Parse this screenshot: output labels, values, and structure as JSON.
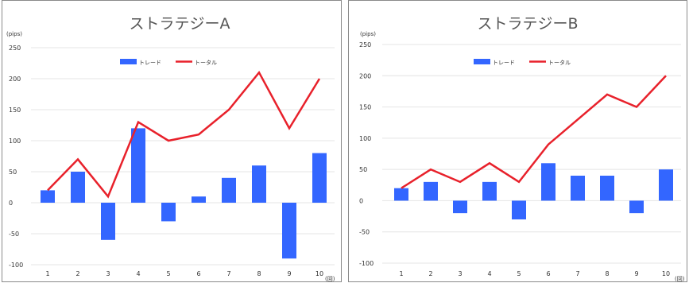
{
  "colors": {
    "bar": "#3366ff",
    "line": "#e8212b"
  },
  "chart_data": [
    {
      "type": "bar",
      "title": "ストラテジーA",
      "yunit": "(pips)",
      "xunit": "(回)",
      "categories": [
        "1",
        "2",
        "3",
        "4",
        "5",
        "6",
        "7",
        "8",
        "9",
        "10"
      ],
      "ylim": [
        -100,
        250
      ],
      "yticks": [
        -100,
        -50,
        0,
        50,
        100,
        150,
        200,
        250
      ],
      "grid": true,
      "legend_position": "top-center",
      "series": [
        {
          "name": "トレード",
          "type": "bar",
          "values": [
            20,
            50,
            -60,
            120,
            -30,
            10,
            40,
            60,
            -90,
            80
          ]
        },
        {
          "name": "トータル",
          "type": "line",
          "values": [
            20,
            70,
            10,
            130,
            100,
            110,
            150,
            210,
            120,
            200
          ]
        }
      ]
    },
    {
      "type": "bar",
      "title": "ストラテジーB",
      "yunit": "(pips)",
      "xunit": "(回)",
      "categories": [
        "1",
        "2",
        "3",
        "4",
        "5",
        "6",
        "7",
        "8",
        "9",
        "10"
      ],
      "ylim": [
        -100,
        250
      ],
      "yticks": [
        -100,
        -50,
        0,
        50,
        100,
        150,
        200,
        250
      ],
      "grid": true,
      "legend_position": "top-center",
      "series": [
        {
          "name": "トレード",
          "type": "bar",
          "values": [
            20,
            30,
            -20,
            30,
            -30,
            60,
            40,
            40,
            -20,
            50
          ]
        },
        {
          "name": "トータル",
          "type": "line",
          "values": [
            20,
            50,
            30,
            60,
            30,
            90,
            130,
            170,
            150,
            200
          ]
        }
      ]
    }
  ]
}
